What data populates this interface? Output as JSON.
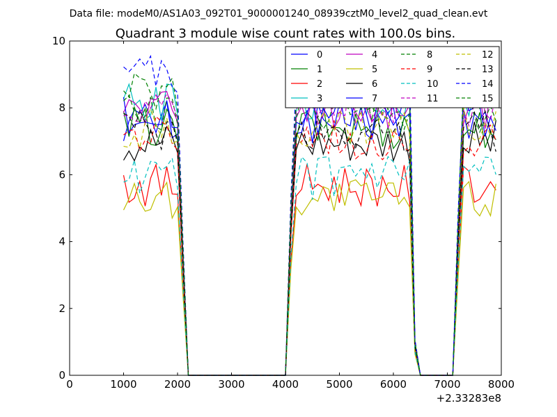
{
  "header": {
    "data_file": "Data file: modeM0/AS1A03_092T01_9000001240_08939cztM0_level2_quad_clean.evt"
  },
  "chart_data": {
    "type": "line",
    "title": "Quadrant 3 module wise count rates with 100.0s bins.",
    "xlabel": "",
    "ylabel": "",
    "x_offset_label": "+2.33283e8",
    "xlim": [
      0,
      8000
    ],
    "ylim": [
      0,
      10
    ],
    "x_ticks": [
      "0",
      "1000",
      "2000",
      "3000",
      "4000",
      "5000",
      "6000",
      "7000",
      "8000"
    ],
    "y_ticks": [
      "0",
      "2",
      "4",
      "6",
      "8",
      "10"
    ],
    "grid": false,
    "legend_position": "top-right",
    "segments": [
      {
        "x_start": 1000,
        "x_end": 1900,
        "kind": "data"
      },
      {
        "x_start": 2000,
        "x_end": 2100,
        "kind": "drop",
        "frac": [
          0.95,
          0.45
        ]
      },
      {
        "x_start": 2200,
        "x_end": 4000,
        "kind": "zero"
      },
      {
        "x_start": 4100,
        "x_end": 4100,
        "kind": "rise",
        "frac": [
          0.6
        ]
      },
      {
        "x_start": 4200,
        "x_end": 6300,
        "kind": "data"
      },
      {
        "x_start": 6400,
        "x_end": 6500,
        "kind": "drop",
        "frac": [
          0.12,
          0.0
        ]
      },
      {
        "x_start": 6500,
        "x_end": 7100,
        "kind": "zero"
      },
      {
        "x_start": 7200,
        "x_end": 7200,
        "kind": "rise",
        "frac": [
          0.55
        ]
      },
      {
        "x_start": 7300,
        "x_end": 7900,
        "kind": "data"
      }
    ],
    "series": [
      {
        "name": "0",
        "color": "#0000ff",
        "dash": "solid",
        "level": 7.6
      },
      {
        "name": "1",
        "color": "#008000",
        "dash": "solid",
        "level": 7.4
      },
      {
        "name": "2",
        "color": "#ff0000",
        "dash": "solid",
        "level": 5.7
      },
      {
        "name": "3",
        "color": "#00bfbf",
        "dash": "solid",
        "level": 8.2
      },
      {
        "name": "4",
        "color": "#bf00bf",
        "dash": "solid",
        "level": 8.0
      },
      {
        "name": "5",
        "color": "#bfbf00",
        "dash": "solid",
        "level": 5.3
      },
      {
        "name": "6",
        "color": "#000000",
        "dash": "solid",
        "level": 7.0
      },
      {
        "name": "7",
        "color": "#0000ff",
        "dash": "solid",
        "level": 7.8
      },
      {
        "name": "8",
        "color": "#008000",
        "dash": "dashed",
        "level": 7.9
      },
      {
        "name": "9",
        "color": "#ff0000",
        "dash": "dashed",
        "level": 7.1
      },
      {
        "name": "10",
        "color": "#00bfbf",
        "dash": "dashed",
        "level": 5.9
      },
      {
        "name": "11",
        "color": "#bf00bf",
        "dash": "dashed",
        "level": 8.1
      },
      {
        "name": "12",
        "color": "#bfbf00",
        "dash": "dashed",
        "level": 7.4
      },
      {
        "name": "13",
        "color": "#000000",
        "dash": "dashed",
        "level": 7.3
      },
      {
        "name": "14",
        "color": "#0000ff",
        "dash": "dashed",
        "level": 8.9
      },
      {
        "name": "15",
        "color": "#008000",
        "dash": "dashed",
        "level": 8.4
      }
    ]
  }
}
